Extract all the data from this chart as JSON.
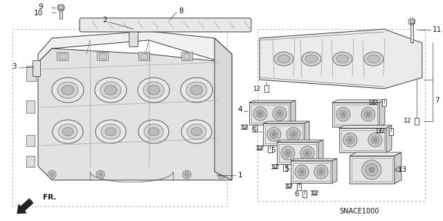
{
  "bg_color": "#ffffff",
  "diagram_code": "SNACE1000",
  "line_color": "#333333",
  "light_gray": "#cccccc",
  "mid_gray": "#999999",
  "dark_gray": "#555555",
  "fs": 7.5,
  "lw": 0.7
}
